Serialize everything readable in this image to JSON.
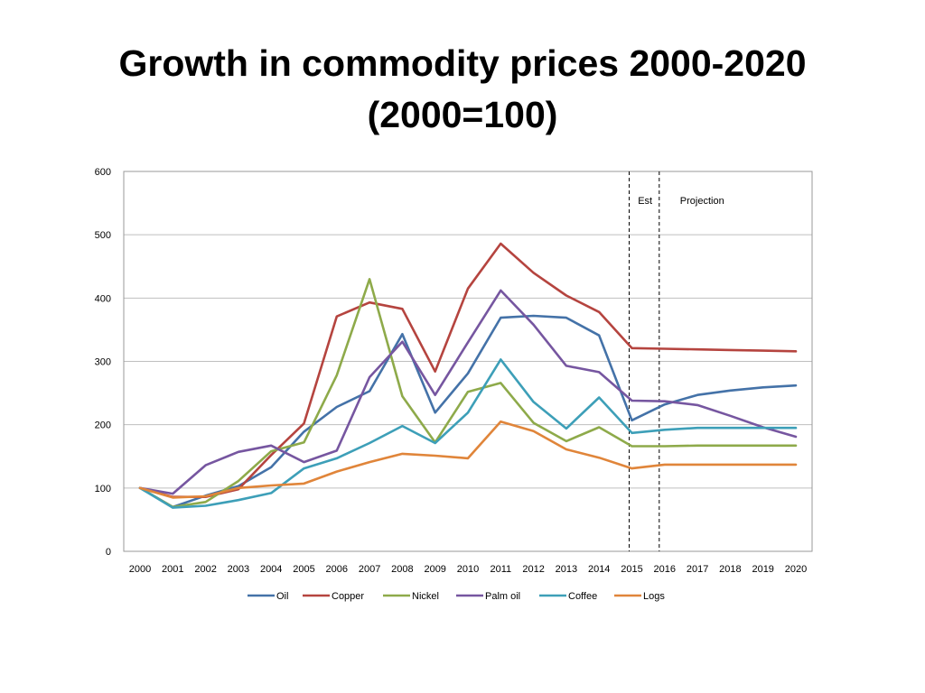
{
  "chart_data": {
    "type": "line",
    "title_line1": "Growth in commodity prices 2000-2020",
    "title_line2": "(2000=100)",
    "categories": [
      "2000",
      "2001",
      "2002",
      "2003",
      "2004",
      "2005",
      "2006",
      "2007",
      "2008",
      "2009",
      "2010",
      "2011",
      "2012",
      "2013",
      "2014",
      "2015",
      "2016",
      "2017",
      "2018",
      "2019",
      "2020"
    ],
    "ylim": [
      0,
      600
    ],
    "yticks": [
      0,
      100,
      200,
      300,
      400,
      500,
      600
    ],
    "grid": true,
    "legend_position": "bottom",
    "annotations": {
      "est_label": "Est",
      "projection_label": "Projection",
      "est_start_category": "2015",
      "projection_start_category": "2016"
    },
    "series": [
      {
        "name": "Oil",
        "color": "#4472a8",
        "values": [
          100,
          70,
          88,
          103,
          133,
          189,
          228,
          253,
          343,
          219,
          281,
          369,
          372,
          369,
          341,
          207,
          232,
          247,
          254,
          259,
          262
        ]
      },
      {
        "name": "Copper",
        "color": "#b5443f",
        "values": [
          100,
          86,
          86,
          98,
          152,
          202,
          371,
          393,
          383,
          284,
          415,
          486,
          440,
          404,
          378,
          321,
          320,
          319,
          318,
          317,
          316
        ]
      },
      {
        "name": "Nickel",
        "color": "#8eaa4a",
        "values": [
          100,
          70,
          78,
          111,
          158,
          172,
          278,
          430,
          245,
          172,
          252,
          266,
          203,
          174,
          196,
          166,
          166,
          167,
          167,
          167,
          167
        ]
      },
      {
        "name": "Palm oil",
        "color": "#7656a0",
        "values": [
          100,
          91,
          136,
          157,
          167,
          141,
          159,
          275,
          331,
          247,
          330,
          412,
          358,
          293,
          283,
          238,
          237,
          231,
          214,
          196,
          181
        ]
      },
      {
        "name": "Coffee",
        "color": "#3d9fb8",
        "values": [
          100,
          69,
          72,
          81,
          92,
          131,
          147,
          171,
          198,
          171,
          219,
          303,
          236,
          194,
          243,
          187,
          192,
          195,
          195,
          195,
          195
        ]
      },
      {
        "name": "Logs",
        "color": "#e0853a",
        "values": [
          100,
          85,
          87,
          100,
          104,
          107,
          126,
          141,
          154,
          151,
          147,
          205,
          190,
          161,
          148,
          131,
          137,
          137,
          137,
          137,
          137
        ]
      }
    ]
  }
}
